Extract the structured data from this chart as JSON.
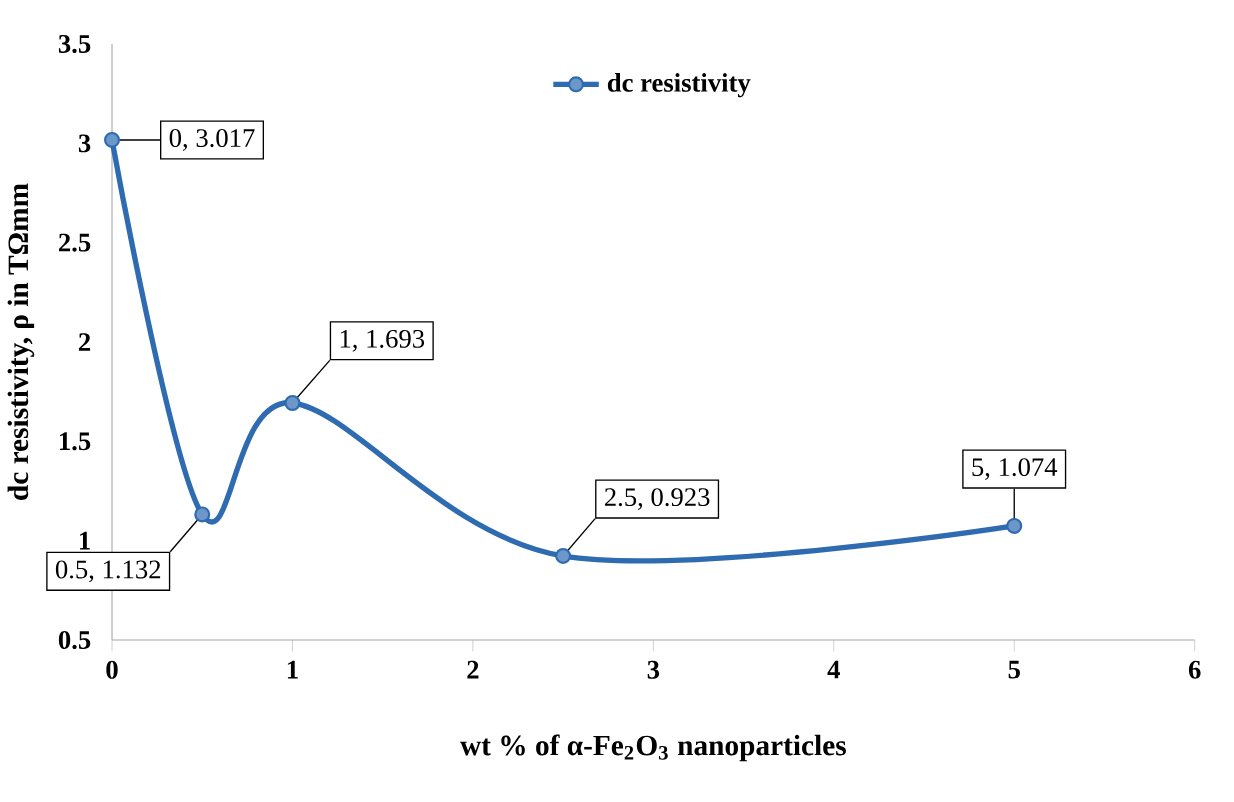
{
  "chart_data": {
    "type": "line",
    "xlabel": "wt % of α-Fe$_{2}$O$_{3}$ nanoparticles",
    "ylabel": "dc resistivity, ρ in TΩmm",
    "x": [
      0,
      0.5,
      1,
      2.5,
      5
    ],
    "series": [
      {
        "name": "dc resistivity",
        "color": "#2e6bb0",
        "values": [
          3.017,
          1.132,
          1.693,
          0.923,
          1.074
        ]
      }
    ],
    "xlim": [
      0,
      6
    ],
    "xticks": [
      0,
      1,
      2,
      3,
      4,
      5,
      6
    ],
    "ylim": [
      0.5,
      3.5
    ],
    "yticks": [
      0.5,
      1,
      1.5,
      2,
      2.5,
      3,
      3.5
    ],
    "grid": false,
    "legend": "top",
    "marker": "circle",
    "line_style": "solid",
    "annotations": [
      {
        "text": "0, 3.017",
        "x": 0,
        "y": 3.017
      },
      {
        "text": "0.5, 1.132",
        "x": 0.5,
        "y": 1.132
      },
      {
        "text": "1, 1.693",
        "x": 1,
        "y": 1.693
      },
      {
        "text": "2.5, 0.923",
        "x": 2.5,
        "y": 0.923
      },
      {
        "text": "5, 1.074",
        "x": 5,
        "y": 1.074
      }
    ]
  }
}
